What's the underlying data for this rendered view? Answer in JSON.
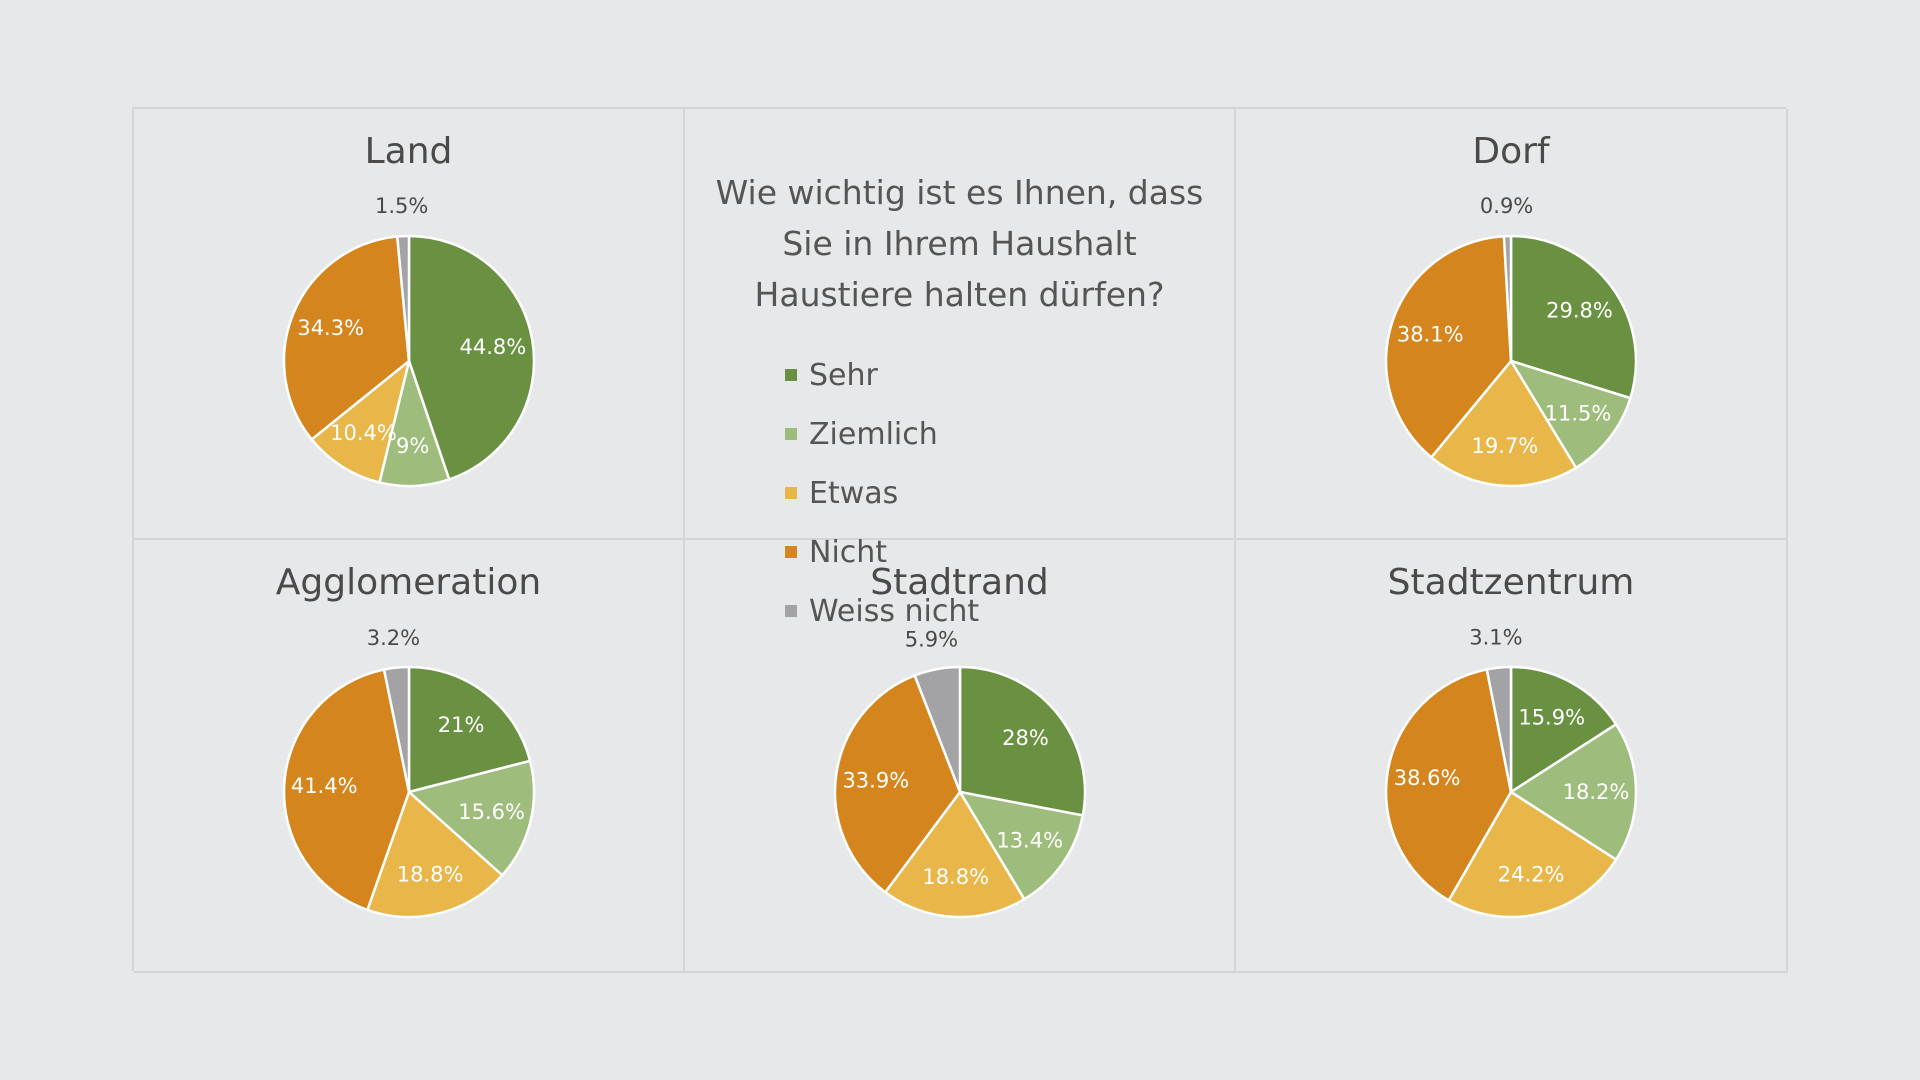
{
  "question": {
    "lines": [
      "Wie wichtig ist es Ihnen, dass",
      "Sie in Ihrem Haushalt",
      "Haustiere halten dürfen?"
    ]
  },
  "legend": [
    {
      "label": "Sehr",
      "color": "#6a9142"
    },
    {
      "label": "Ziemlich",
      "color": "#9ebd7c"
    },
    {
      "label": "Etwas",
      "color": "#e9b64a"
    },
    {
      "label": "Nicht",
      "color": "#d5851e"
    },
    {
      "label": "Weiss nicht",
      "color": "#a3a3a6"
    }
  ],
  "chart_data": [
    {
      "type": "pie",
      "title": "Land",
      "categories": [
        "Sehr",
        "Ziemlich",
        "Etwas",
        "Nicht",
        "Weiss nicht"
      ],
      "values": [
        44.8,
        9,
        10.4,
        34.3,
        1.5
      ],
      "labels": [
        "44.8%",
        "9%",
        "10.4%",
        "34.3%",
        "1.5%"
      ]
    },
    {
      "type": "pie",
      "title": "Dorf",
      "categories": [
        "Sehr",
        "Ziemlich",
        "Etwas",
        "Nicht",
        "Weiss nicht"
      ],
      "values": [
        29.8,
        11.5,
        19.7,
        38.1,
        0.9
      ],
      "labels": [
        "29.8%",
        "11.5%",
        "19.7%",
        "38.1%",
        "0.9%"
      ]
    },
    {
      "type": "pie",
      "title": "Agglomeration",
      "categories": [
        "Sehr",
        "Ziemlich",
        "Etwas",
        "Nicht",
        "Weiss nicht"
      ],
      "values": [
        21,
        15.6,
        18.8,
        41.4,
        3.2
      ],
      "labels": [
        "21%",
        "15.6%",
        "18.8%",
        "41.4%",
        "3.2%"
      ]
    },
    {
      "type": "pie",
      "title": "Stadtrand",
      "categories": [
        "Sehr",
        "Ziemlich",
        "Etwas",
        "Nicht",
        "Weiss nicht"
      ],
      "values": [
        28,
        13.4,
        18.8,
        33.9,
        5.9
      ],
      "labels": [
        "28%",
        "13.4%",
        "18.8%",
        "33.9%",
        "5.9%"
      ]
    },
    {
      "type": "pie",
      "title": "Stadtzentrum",
      "categories": [
        "Sehr",
        "Ziemlich",
        "Etwas",
        "Nicht",
        "Weiss nicht"
      ],
      "values": [
        15.9,
        18.2,
        24.2,
        38.6,
        3.1
      ],
      "labels": [
        "15.9%",
        "18.2%",
        "24.2%",
        "38.6%",
        "3.1%"
      ]
    }
  ]
}
